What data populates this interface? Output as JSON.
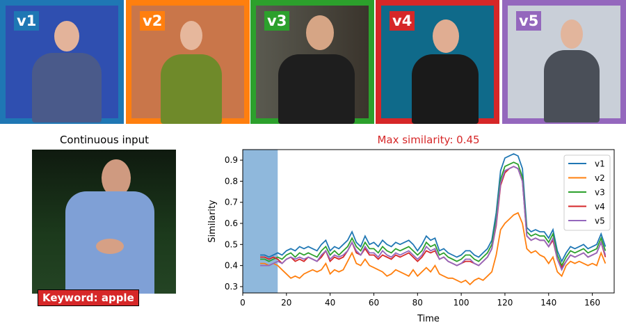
{
  "videos": [
    {
      "label": "v1",
      "color": "#1f77b4",
      "bg": "#2f4fb0"
    },
    {
      "label": "v2",
      "color": "#ff7f0e",
      "bg": "#c9764a"
    },
    {
      "label": "v3",
      "color": "#2ca02c",
      "bg": "#4a4438"
    },
    {
      "label": "v4",
      "color": "#d62728",
      "bg": "#0f6a8a"
    },
    {
      "label": "v5",
      "color": "#9467bd",
      "bg": "#c9cfd8"
    }
  ],
  "continuous_input": {
    "title": "Continuous input",
    "keyword": "Keyword: apple"
  },
  "chart_data": {
    "type": "line",
    "title": "Max similarity: 0.45",
    "title_color": "#d62728",
    "xlabel": "Time",
    "ylabel": "Similarity",
    "xlim": [
      0,
      170
    ],
    "ylim": [
      0.27,
      0.95
    ],
    "xticks": [
      0,
      20,
      40,
      60,
      80,
      100,
      120,
      140,
      160
    ],
    "yticks": [
      0.3,
      0.4,
      0.5,
      0.6,
      0.7,
      0.8,
      0.9
    ],
    "highlight_span": [
      0,
      16
    ],
    "highlight_color": "#8fb8dc",
    "legend_position": "top-right",
    "x": [
      8,
      10,
      12,
      14,
      16,
      18,
      20,
      22,
      24,
      26,
      28,
      30,
      32,
      34,
      36,
      38,
      40,
      42,
      44,
      46,
      48,
      50,
      52,
      54,
      56,
      58,
      60,
      62,
      64,
      66,
      68,
      70,
      72,
      74,
      76,
      78,
      80,
      82,
      84,
      86,
      88,
      90,
      92,
      94,
      96,
      98,
      100,
      102,
      104,
      106,
      108,
      110,
      112,
      114,
      116,
      118,
      120,
      122,
      124,
      126,
      128,
      130,
      132,
      134,
      136,
      138,
      140,
      142,
      144,
      146,
      148,
      150,
      152,
      154,
      156,
      158,
      160,
      162,
      164,
      166
    ],
    "series": [
      {
        "name": "v1",
        "color": "#1f77b4",
        "values": [
          0.45,
          0.45,
          0.44,
          0.45,
          0.46,
          0.45,
          0.47,
          0.48,
          0.47,
          0.49,
          0.48,
          0.49,
          0.48,
          0.47,
          0.5,
          0.52,
          0.47,
          0.49,
          0.48,
          0.5,
          0.52,
          0.56,
          0.51,
          0.49,
          0.54,
          0.5,
          0.51,
          0.49,
          0.52,
          0.5,
          0.49,
          0.51,
          0.5,
          0.51,
          0.52,
          0.5,
          0.47,
          0.5,
          0.54,
          0.52,
          0.53,
          0.47,
          0.48,
          0.46,
          0.45,
          0.44,
          0.45,
          0.47,
          0.47,
          0.45,
          0.44,
          0.46,
          0.48,
          0.52,
          0.65,
          0.85,
          0.91,
          0.92,
          0.93,
          0.92,
          0.86,
          0.58,
          0.56,
          0.57,
          0.56,
          0.56,
          0.53,
          0.57,
          0.47,
          0.42,
          0.46,
          0.49,
          0.48,
          0.49,
          0.5,
          0.48,
          0.49,
          0.5,
          0.55,
          0.49
        ]
      },
      {
        "name": "v2",
        "color": "#ff7f0e",
        "values": [
          0.41,
          0.41,
          0.4,
          0.41,
          0.4,
          0.38,
          0.36,
          0.34,
          0.35,
          0.34,
          0.36,
          0.37,
          0.38,
          0.37,
          0.38,
          0.41,
          0.36,
          0.38,
          0.37,
          0.38,
          0.42,
          0.46,
          0.41,
          0.4,
          0.43,
          0.4,
          0.39,
          0.38,
          0.37,
          0.35,
          0.36,
          0.38,
          0.37,
          0.36,
          0.35,
          0.38,
          0.35,
          0.37,
          0.39,
          0.37,
          0.4,
          0.36,
          0.35,
          0.34,
          0.34,
          0.33,
          0.32,
          0.33,
          0.31,
          0.33,
          0.34,
          0.33,
          0.35,
          0.37,
          0.45,
          0.57,
          0.6,
          0.62,
          0.64,
          0.65,
          0.6,
          0.48,
          0.46,
          0.47,
          0.45,
          0.44,
          0.41,
          0.44,
          0.37,
          0.35,
          0.4,
          0.42,
          0.41,
          0.42,
          0.41,
          0.4,
          0.41,
          0.4,
          0.46,
          0.41
        ]
      },
      {
        "name": "v3",
        "color": "#2ca02c",
        "values": [
          0.43,
          0.43,
          0.42,
          0.43,
          0.44,
          0.43,
          0.45,
          0.46,
          0.44,
          0.46,
          0.45,
          0.46,
          0.45,
          0.44,
          0.47,
          0.49,
          0.45,
          0.47,
          0.45,
          0.47,
          0.49,
          0.53,
          0.49,
          0.47,
          0.51,
          0.48,
          0.48,
          0.46,
          0.49,
          0.47,
          0.46,
          0.48,
          0.47,
          0.48,
          0.49,
          0.47,
          0.45,
          0.47,
          0.51,
          0.49,
          0.5,
          0.45,
          0.46,
          0.44,
          0.43,
          0.42,
          0.43,
          0.45,
          0.45,
          0.43,
          0.42,
          0.44,
          0.46,
          0.5,
          0.62,
          0.81,
          0.87,
          0.88,
          0.89,
          0.88,
          0.82,
          0.56,
          0.54,
          0.55,
          0.54,
          0.54,
          0.51,
          0.55,
          0.45,
          0.4,
          0.44,
          0.47,
          0.46,
          0.47,
          0.48,
          0.46,
          0.47,
          0.48,
          0.53,
          0.47
        ]
      },
      {
        "name": "v4",
        "color": "#d62728",
        "values": [
          0.44,
          0.44,
          0.43,
          0.44,
          0.43,
          0.41,
          0.43,
          0.44,
          0.42,
          0.43,
          0.42,
          0.44,
          0.43,
          0.42,
          0.44,
          0.47,
          0.42,
          0.44,
          0.43,
          0.44,
          0.47,
          0.51,
          0.46,
          0.45,
          0.48,
          0.45,
          0.45,
          0.43,
          0.45,
          0.44,
          0.43,
          0.45,
          0.44,
          0.45,
          0.46,
          0.44,
          0.42,
          0.44,
          0.47,
          0.46,
          0.47,
          0.43,
          0.44,
          0.42,
          0.41,
          0.4,
          0.41,
          0.42,
          0.42,
          0.41,
          0.4,
          0.42,
          0.44,
          0.48,
          0.59,
          0.78,
          0.84,
          0.86,
          0.87,
          0.86,
          0.8,
          0.54,
          0.52,
          0.53,
          0.52,
          0.52,
          0.49,
          0.52,
          0.43,
          0.39,
          0.42,
          0.45,
          0.44,
          0.45,
          0.46,
          0.44,
          0.45,
          0.46,
          0.51,
          0.44
        ]
      },
      {
        "name": "v5",
        "color": "#9467bd",
        "values": [
          0.4,
          0.4,
          0.4,
          0.41,
          0.42,
          0.41,
          0.43,
          0.44,
          0.43,
          0.44,
          0.43,
          0.44,
          0.43,
          0.42,
          0.45,
          0.47,
          0.43,
          0.45,
          0.44,
          0.45,
          0.47,
          0.51,
          0.47,
          0.45,
          0.49,
          0.46,
          0.46,
          0.44,
          0.47,
          0.45,
          0.44,
          0.46,
          0.45,
          0.46,
          0.47,
          0.45,
          0.43,
          0.45,
          0.49,
          0.47,
          0.48,
          0.43,
          0.44,
          0.42,
          0.41,
          0.4,
          0.41,
          0.43,
          0.43,
          0.41,
          0.4,
          0.42,
          0.44,
          0.48,
          0.6,
          0.79,
          0.85,
          0.86,
          0.87,
          0.86,
          0.8,
          0.54,
          0.52,
          0.53,
          0.52,
          0.52,
          0.49,
          0.53,
          0.43,
          0.38,
          0.42,
          0.45,
          0.44,
          0.45,
          0.46,
          0.44,
          0.45,
          0.46,
          0.51,
          0.45
        ]
      }
    ]
  }
}
